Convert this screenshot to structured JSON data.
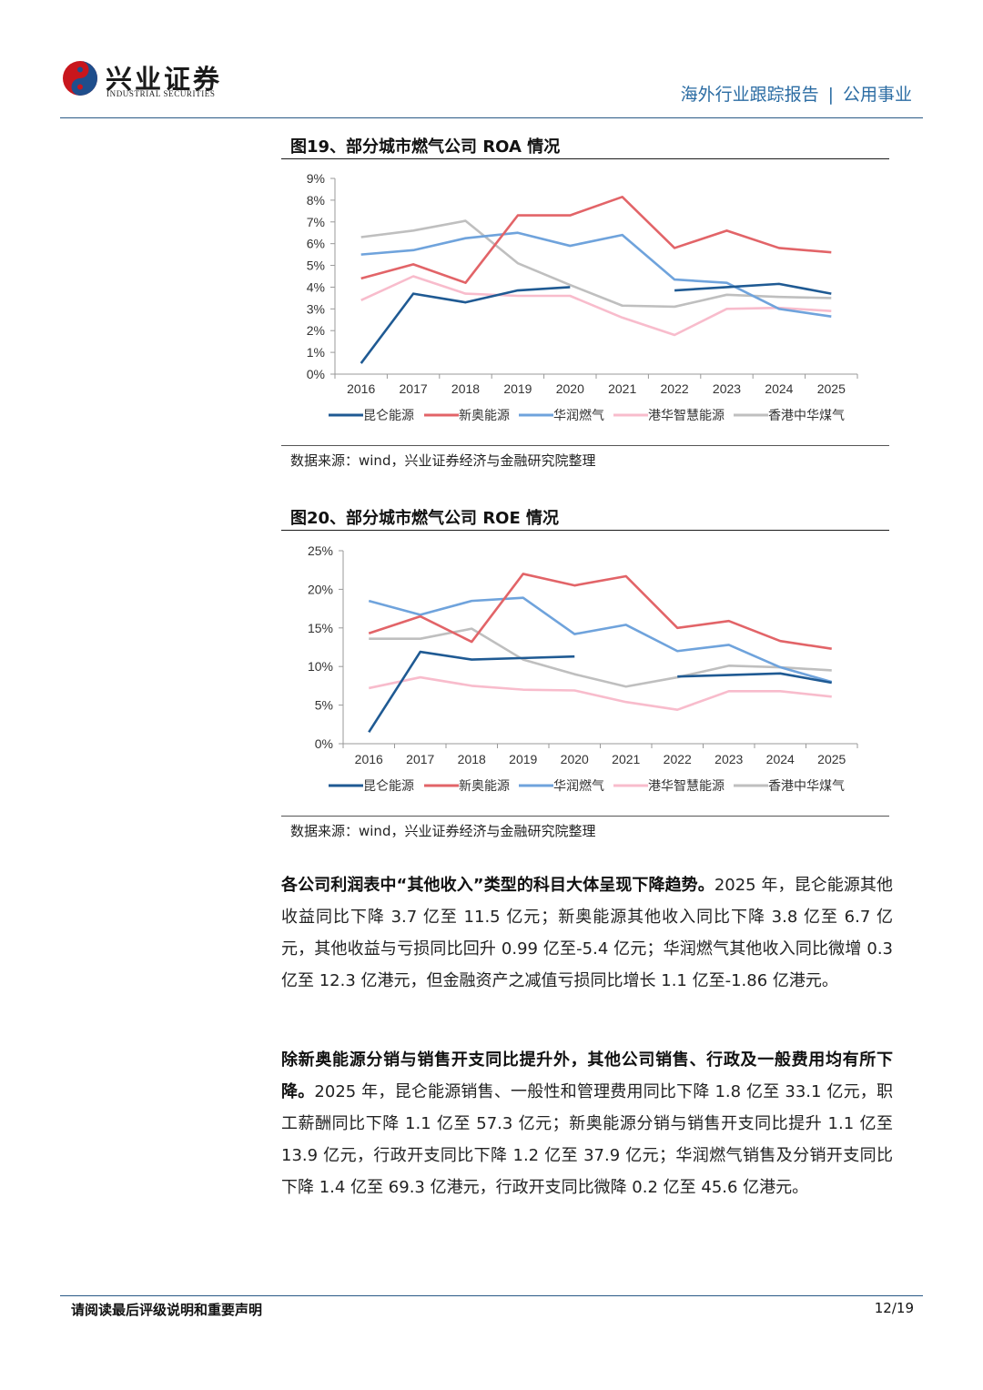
{
  "header": {
    "logo_cn": "兴业证券",
    "logo_en": "INDUSTRIAL SECURITIES",
    "report_type": "海外行业跟踪报告",
    "separator": "|",
    "sector": "公用事业"
  },
  "colors": {
    "昆仑能源": "#1f5a93",
    "新奥能源": "#e26468",
    "华润燃气": "#6fa3dc",
    "港华智慧能源": "#f8bccc",
    "香港中华煤气": "#bfbfbf"
  },
  "chart_data": [
    {
      "type": "line",
      "title": "图19、部分城市燃气公司 ROA 情况",
      "x": [
        "2016",
        "2017",
        "2018",
        "2019",
        "2020",
        "2021",
        "2022",
        "2023",
        "2024",
        "2025"
      ],
      "ylim": [
        0,
        9
      ],
      "yticks": [
        "0%",
        "1%",
        "2%",
        "3%",
        "4%",
        "5%",
        "6%",
        "7%",
        "8%",
        "9%"
      ],
      "legend_position": "bottom",
      "series": [
        {
          "name": "昆仑能源",
          "values": [
            0.5,
            3.7,
            3.3,
            3.85,
            4.0,
            null,
            3.85,
            4.0,
            4.15,
            3.7
          ]
        },
        {
          "name": "新奥能源",
          "values": [
            4.4,
            5.05,
            4.2,
            7.3,
            7.3,
            8.15,
            5.8,
            6.6,
            5.8,
            5.6
          ]
        },
        {
          "name": "华润燃气",
          "values": [
            5.5,
            5.7,
            6.25,
            6.5,
            5.9,
            6.4,
            4.35,
            4.2,
            3.0,
            2.65
          ]
        },
        {
          "name": "港华智慧能源",
          "values": [
            3.4,
            4.5,
            3.7,
            3.6,
            3.6,
            2.6,
            1.8,
            3.0,
            3.05,
            2.9
          ]
        },
        {
          "name": "香港中华煤气",
          "values": [
            6.3,
            6.6,
            7.05,
            5.1,
            4.1,
            3.15,
            3.1,
            3.65,
            3.55,
            3.5
          ]
        }
      ],
      "source": "数据来源：wind，兴业证券经济与金融研究院整理"
    },
    {
      "type": "line",
      "title": "图20、部分城市燃气公司 ROE 情况",
      "x": [
        "2016",
        "2017",
        "2018",
        "2019",
        "2020",
        "2021",
        "2022",
        "2023",
        "2024",
        "2025"
      ],
      "ylim": [
        0,
        25
      ],
      "yticks": [
        "0%",
        "5%",
        "10%",
        "15%",
        "20%",
        "25%"
      ],
      "legend_position": "bottom",
      "series": [
        {
          "name": "昆仑能源",
          "values": [
            1.5,
            11.9,
            10.9,
            11.1,
            11.3,
            null,
            8.7,
            8.9,
            9.1,
            7.9
          ]
        },
        {
          "name": "新奥能源",
          "values": [
            14.3,
            16.5,
            13.2,
            22.0,
            20.5,
            21.7,
            15.0,
            15.9,
            13.3,
            12.3
          ]
        },
        {
          "name": "华润燃气",
          "values": [
            18.5,
            16.7,
            18.5,
            18.9,
            14.2,
            15.4,
            12.0,
            12.8,
            9.9,
            8.0
          ]
        },
        {
          "name": "港华智慧能源",
          "values": [
            7.2,
            8.6,
            7.5,
            7.0,
            6.9,
            5.4,
            4.4,
            6.8,
            6.8,
            6.1
          ]
        },
        {
          "name": "香港中华煤气",
          "values": [
            13.6,
            13.6,
            14.9,
            10.9,
            9.0,
            7.4,
            8.6,
            10.1,
            9.9,
            9.5
          ]
        }
      ],
      "source": "数据来源：wind，兴业证券经济与金融研究院整理"
    }
  ],
  "paragraphs": [
    {
      "bold": "各公司利润表中“其他收入”类型的科目大体呈现下降趋势。",
      "text": "2025 年，昆仑能源其他收益同比下降 3.7 亿至 11.5 亿元；新奥能源其他收入同比下降 3.8 亿至 6.7 亿元，其他收益与亏损同比回升 0.99 亿至-5.4 亿元；华润燃气其他收入同比微增 0.3 亿至 12.3 亿港元，但金融资产之减值亏损同比增长 1.1 亿至-1.86 亿港元。"
    },
    {
      "bold": "除新奥能源分销与销售开支同比提升外，其他公司销售、行政及一般费用均有所下降。",
      "text": "2025 年，昆仑能源销售、一般性和管理费用同比下降 1.8 亿至 33.1 亿元，职工薪酬同比下降 1.1 亿至 57.3 亿元；新奥能源分销与销售开支同比提升 1.1 亿至 13.9 亿元，行政开支同比下降 1.2 亿至 37.9 亿元；华润燃气销售及分销开支同比下降 1.4 亿至 69.3 亿港元，行政开支同比微降 0.2 亿至 45.6 亿港元。"
    }
  ],
  "footer": {
    "disclaimer": "请阅读最后评级说明和重要声明",
    "page": "12/19"
  }
}
